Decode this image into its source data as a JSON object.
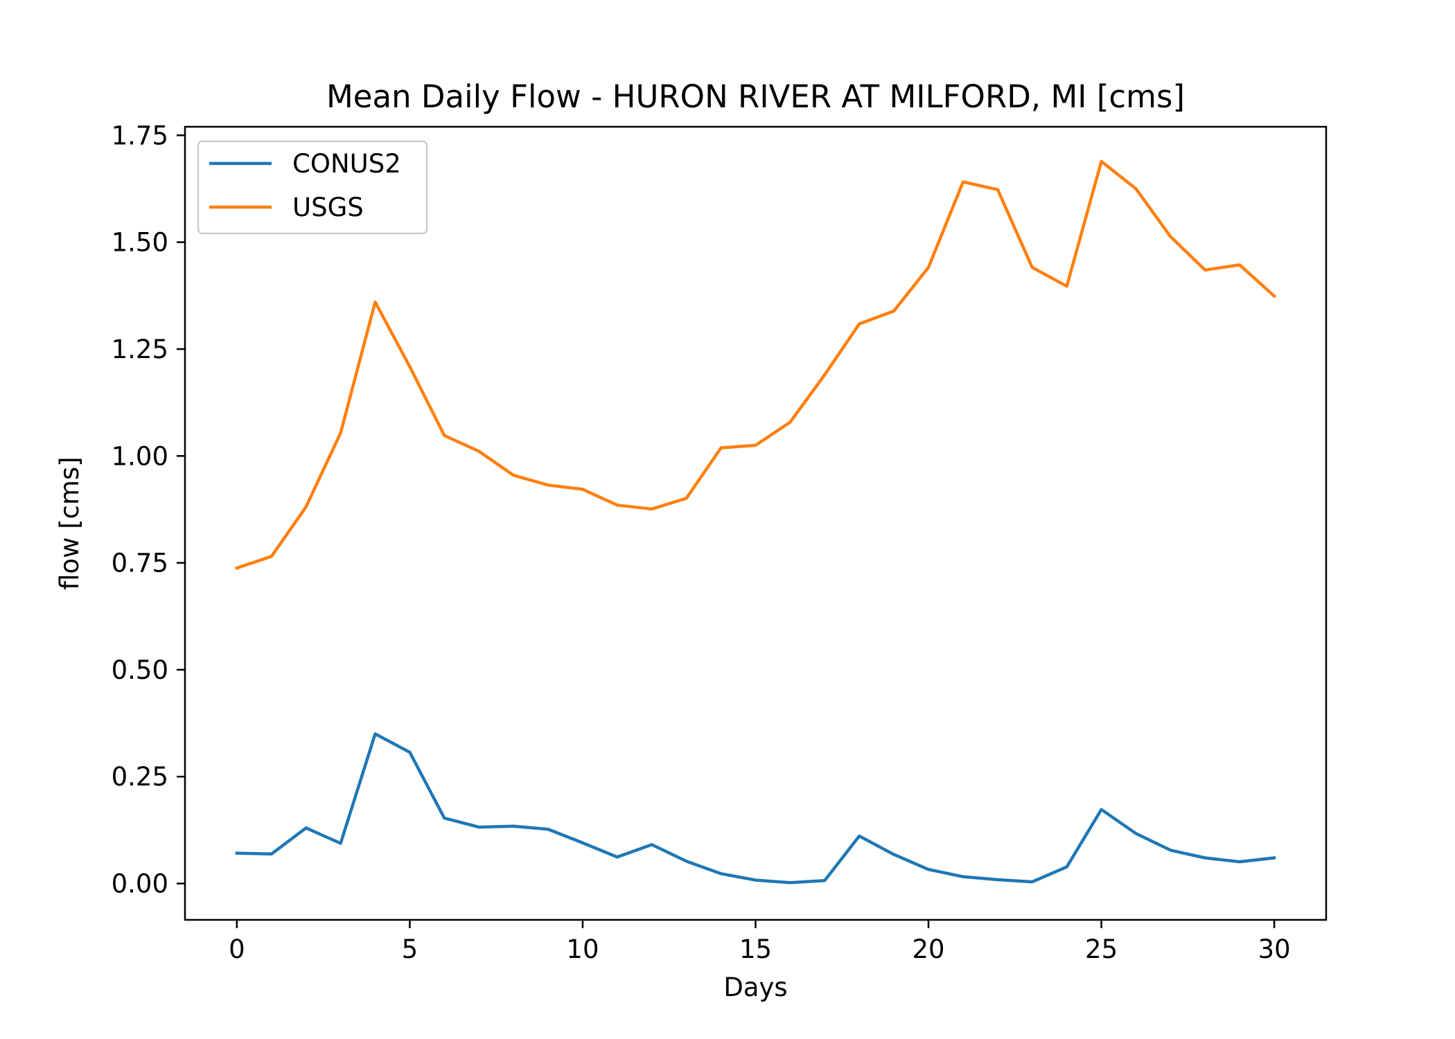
{
  "chart_data": {
    "type": "line",
    "title": "Mean Daily Flow - HURON RIVER AT MILFORD, MI [cms]",
    "xlabel": "Days",
    "ylabel": "flow [cms]",
    "xlim": [
      -1.5,
      31.5
    ],
    "ylim": [
      -0.085,
      1.77
    ],
    "xticks": [
      0,
      5,
      10,
      15,
      20,
      25,
      30
    ],
    "xtick_labels": [
      "0",
      "5",
      "10",
      "15",
      "20",
      "25",
      "30"
    ],
    "yticks": [
      0.0,
      0.25,
      0.5,
      0.75,
      1.0,
      1.25,
      1.5,
      1.75
    ],
    "ytick_labels": [
      "0.00",
      "0.25",
      "0.50",
      "0.75",
      "1.00",
      "1.25",
      "1.50",
      "1.75"
    ],
    "grid": false,
    "legend_position": "upper-left",
    "x": [
      0,
      1,
      2,
      3,
      4,
      5,
      6,
      7,
      8,
      9,
      10,
      11,
      12,
      13,
      14,
      15,
      16,
      17,
      18,
      19,
      20,
      21,
      22,
      23,
      24,
      25,
      26,
      27,
      28,
      29,
      30
    ],
    "series": [
      {
        "name": "CONUS2",
        "color": "#1f77b4",
        "values": [
          0.071,
          0.069,
          0.13,
          0.094,
          0.35,
          0.307,
          0.153,
          0.132,
          0.134,
          0.127,
          0.095,
          0.062,
          0.091,
          0.052,
          0.023,
          0.008,
          0.002,
          0.007,
          0.111,
          0.068,
          0.033,
          0.016,
          0.009,
          0.004,
          0.039,
          0.173,
          0.117,
          0.078,
          0.06,
          0.051,
          0.06
        ]
      },
      {
        "name": "USGS",
        "color": "#ff7f0e",
        "values": [
          0.738,
          0.765,
          0.881,
          1.054,
          1.36,
          1.209,
          1.048,
          1.011,
          0.955,
          0.932,
          0.922,
          0.885,
          0.876,
          0.901,
          1.019,
          1.025,
          1.079,
          1.19,
          1.309,
          1.339,
          1.441,
          1.641,
          1.623,
          1.441,
          1.397,
          1.689,
          1.625,
          1.513,
          1.435,
          1.447,
          1.374
        ]
      }
    ]
  }
}
